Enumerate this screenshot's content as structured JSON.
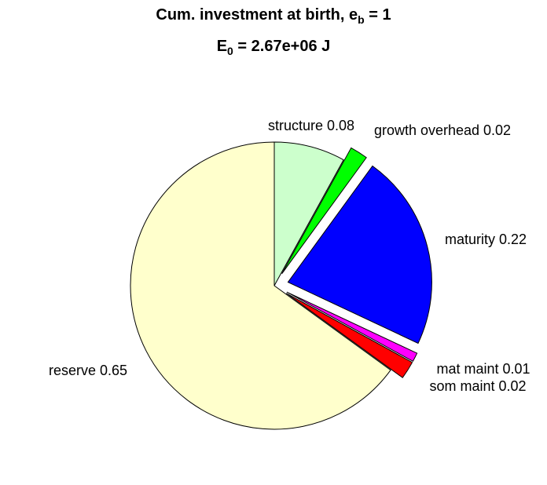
{
  "chart_data": {
    "type": "pie",
    "title_parts": {
      "line1_prefix": "Cum. investment at birth, e",
      "line1_sub": "b",
      "line1_suffix": " = 1",
      "line2_prefix": "E",
      "line2_sub": "0",
      "line2_suffix": " = 2.67e+06 J"
    },
    "slices": [
      {
        "label": "structure 0.08",
        "value": 0.08,
        "color": "#ccffcc",
        "exploded": false
      },
      {
        "label": "growth overhead 0.02",
        "value": 0.02,
        "color": "#00ff00",
        "exploded": true
      },
      {
        "label": "maturity 0.22",
        "value": 0.22,
        "color": "#0000ff",
        "exploded": true
      },
      {
        "label": "mat maint 0.01",
        "value": 0.01,
        "color": "#ff00ff",
        "exploded": true
      },
      {
        "label": "som maint 0.02",
        "value": 0.02,
        "color": "#ff0000",
        "exploded": true
      },
      {
        "label": "reserve 0.65",
        "value": 0.65,
        "color": "#ffffcc",
        "exploded": false
      }
    ],
    "direction": "clockwise",
    "start": "top"
  }
}
